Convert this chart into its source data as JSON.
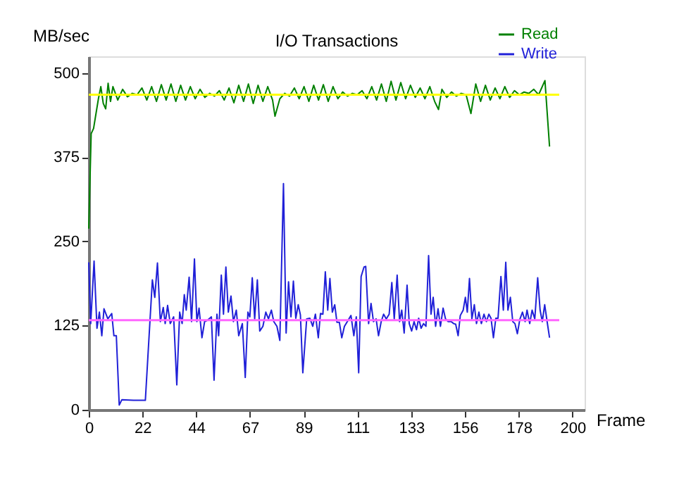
{
  "chart_data": {
    "type": "line",
    "title": "I/O Transactions",
    "xlabel": "Frame",
    "ylabel": "MB/sec",
    "xlim": [
      0,
      205
    ],
    "ylim": [
      0,
      525
    ],
    "xticks": [
      0,
      {
        "value": 22.222,
        "label": "22"
      },
      {
        "value": 44.444,
        "label": "44"
      },
      {
        "value": 66.667,
        "label": "67"
      },
      {
        "value": 88.889,
        "label": "89"
      },
      {
        "value": 111.111,
        "label": "111"
      },
      {
        "value": 133.333,
        "label": "133"
      },
      {
        "value": 155.556,
        "label": "156"
      },
      {
        "value": 177.778,
        "label": "178"
      },
      200
    ],
    "yticks": [
      0,
      125,
      250,
      375,
      500
    ],
    "grid": false,
    "legend": "top right",
    "marker": "none",
    "line_style": "solid",
    "ref_lines": [
      {
        "axis": "y",
        "value": 468,
        "color": "#ffff00"
      },
      {
        "axis": "y",
        "value": 133,
        "color": "#ff66ff"
      }
    ],
    "series": [
      {
        "name": "Read",
        "color": "#008000",
        "x": [
          0,
          1,
          2,
          3,
          4,
          5,
          6,
          7,
          8,
          9,
          10,
          12,
          14,
          16,
          18,
          20,
          22,
          24,
          26,
          28,
          30,
          32,
          34,
          36,
          38,
          40,
          42,
          44,
          46,
          48,
          50,
          52,
          54,
          56,
          58,
          60,
          62,
          64,
          66,
          68,
          70,
          72,
          74,
          76,
          77,
          79,
          81,
          83,
          85,
          87,
          89,
          91,
          93,
          95,
          97,
          99,
          101,
          103,
          105,
          107,
          109,
          111,
          113,
          115,
          117,
          119,
          121,
          123,
          125,
          127,
          129,
          131,
          133,
          135,
          137,
          139,
          141,
          143,
          144.6,
          146,
          148,
          150,
          152,
          154,
          156,
          158,
          160,
          162,
          164,
          166,
          168,
          170,
          172,
          174,
          176,
          178,
          180,
          182,
          184,
          186,
          188.6,
          190.5
        ],
        "values": [
          269,
          410,
          418,
          440,
          462,
          480,
          455,
          447,
          485,
          458,
          480,
          460,
          476,
          465,
          470,
          468,
          478,
          460,
          480,
          458,
          483,
          460,
          484,
          458,
          482,
          460,
          480,
          462,
          476,
          464,
          470,
          466,
          474,
          460,
          478,
          456,
          482,
          458,
          484,
          455,
          482,
          458,
          480,
          460,
          436,
          462,
          470,
          466,
          478,
          462,
          480,
          458,
          482,
          460,
          483,
          458,
          480,
          462,
          472,
          466,
          470,
          468,
          474,
          462,
          480,
          460,
          484,
          458,
          488,
          460,
          486,
          462,
          482,
          464,
          478,
          462,
          480,
          458,
          446,
          476,
          464,
          472,
          466,
          470,
          468,
          440,
          484,
          458,
          482,
          460,
          478,
          462,
          480,
          464,
          474,
          468,
          472,
          470,
          476,
          468,
          489,
          391
        ]
      },
      {
        "name": "Write",
        "color": "#2020d8",
        "x": [
          0,
          0.8,
          2.2,
          3.4,
          4.4,
          5.4,
          6.3,
          7.9,
          9.5,
          10.4,
          11.4,
          12.6,
          13.7,
          18.5,
          23.4,
          26.3,
          27.3,
          28.4,
          29.6,
          30.8,
          31.6,
          32.6,
          33.7,
          35.1,
          36.4,
          37.6,
          38.6,
          39.5,
          40.3,
          41.5,
          42.5,
          43.7,
          44.7,
          45.6,
          46.8,
          47.9,
          49.1,
          50.7,
          51.8,
          53,
          53.7,
          54.8,
          55.7,
          56.7,
          57.7,
          58.8,
          59.8,
          61,
          62,
          63.5,
          64.7,
          65.8,
          66.6,
          67.6,
          68.6,
          69.7,
          70.7,
          72,
          73.2,
          74.3,
          75.5,
          76.5,
          77.8,
          79,
          80.5,
          81.6,
          82.6,
          83.6,
          84.6,
          85.6,
          86.6,
          87.5,
          88.5,
          90.1,
          91.4,
          92.6,
          93.7,
          94.9,
          95.8,
          96.8,
          97.8,
          98.8,
          99.7,
          100.7,
          101.7,
          102.6,
          103.6,
          104.6,
          105.7,
          106.9,
          108.4,
          109.6,
          110.6,
          111.6,
          112.6,
          113.8,
          114.5,
          115.7,
          116.7,
          117.7,
          118.8,
          119.8,
          120.9,
          121.9,
          123,
          124.2,
          125.3,
          126.3,
          127.5,
          128.5,
          129.4,
          130.4,
          131.6,
          132.5,
          133.5,
          134.5,
          135.5,
          136.4,
          137.4,
          138.4,
          139.4,
          140.5,
          141.5,
          142.4,
          143.4,
          144.4,
          145.4,
          146.5,
          147.5,
          148.6,
          149.8,
          150.9,
          151.7,
          152.7,
          153.6,
          154.8,
          155.7,
          156.5,
          157.4,
          158.4,
          159.4,
          160.3,
          161.3,
          162.3,
          163.4,
          164.4,
          165.4,
          166.3,
          167.3,
          168.3,
          169.2,
          170.4,
          171.4,
          172.4,
          173.3,
          174.3,
          175.3,
          176.2,
          177.2,
          178.2,
          179.3,
          180.4,
          181.2,
          182.3,
          183.3,
          184.4,
          185.6,
          186.6,
          187.5,
          188.5,
          189.5,
          190.5
        ],
        "values": [
          219,
          128,
          221,
          121,
          145,
          110,
          150,
          135,
          143,
          110,
          110,
          7,
          15,
          14,
          14,
          193,
          167,
          218,
          131,
          152,
          128,
          155,
          128,
          138,
          37,
          145,
          128,
          171,
          148,
          197,
          131,
          224,
          131,
          151,
          107,
          131,
          133,
          138,
          44,
          142,
          110,
          200,
          142,
          212,
          145,
          169,
          131,
          148,
          110,
          128,
          48,
          145,
          138,
          196,
          135,
          193,
          117,
          124,
          145,
          135,
          148,
          131,
          124,
          103,
          336,
          114,
          190,
          138,
          191,
          136,
          156,
          141,
          55,
          135,
          136,
          124,
          142,
          107,
          143,
          142,
          205,
          148,
          195,
          145,
          156,
          130,
          130,
          107,
          124,
          131,
          140,
          110,
          138,
          55,
          198,
          212,
          213,
          128,
          158,
          131,
          135,
          110,
          131,
          142,
          135,
          142,
          189,
          135,
          200,
          131,
          148,
          114,
          185,
          128,
          117,
          131,
          119,
          136,
          121,
          128,
          124,
          229,
          142,
          167,
          124,
          150,
          124,
          151,
          135,
          131,
          131,
          128,
          127,
          110,
          140,
          148,
          167,
          145,
          195,
          135,
          156,
          128,
          145,
          128,
          142,
          131,
          142,
          136,
          107,
          136,
          136,
          198,
          148,
          219,
          148,
          167,
          131,
          128,
          113,
          134,
          145,
          131,
          148,
          128,
          148,
          135,
          196,
          148,
          131,
          156,
          131,
          107
        ]
      }
    ]
  }
}
